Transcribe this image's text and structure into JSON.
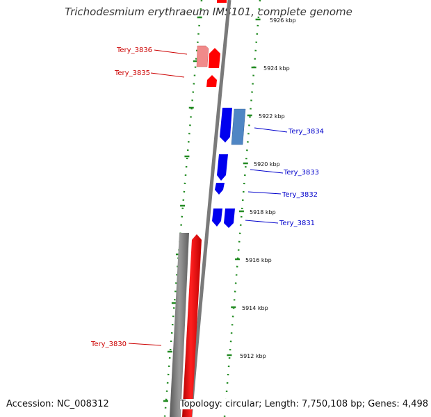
{
  "title": "Trichodesmium erythraeum IMS101, complete genome",
  "footer": {
    "accession": "Accession: NC_008312",
    "topology": "Topology: circular; Length: 7,750,108 bp; Genes: 4,498"
  },
  "colors": {
    "forward_gene": "#ff0000",
    "forward_gene_light": "#f08a8a",
    "reverse_gene": "#0000ee",
    "reverse_gene_light": "#4f86c4",
    "backbone": "#808080",
    "tick": "#228b22",
    "label_forward": "#cc0000",
    "label_reverse": "#0000cc"
  },
  "kbp_labels": [
    "5926 kbp",
    "5924 kbp",
    "5922 kbp",
    "5920 kbp",
    "5918 kbp",
    "5916 kbp",
    "5914 kbp",
    "5912 kbp"
  ],
  "gene_labels": [
    {
      "text": "Tery_3836",
      "strand": "forward"
    },
    {
      "text": "Tery_3835",
      "strand": "forward"
    },
    {
      "text": "Tery_3834",
      "strand": "reverse"
    },
    {
      "text": "Tery_3833",
      "strand": "reverse"
    },
    {
      "text": "Tery_3832",
      "strand": "reverse"
    },
    {
      "text": "Tery_3831",
      "strand": "reverse"
    },
    {
      "text": "Tery_3830",
      "strand": "forward"
    }
  ]
}
